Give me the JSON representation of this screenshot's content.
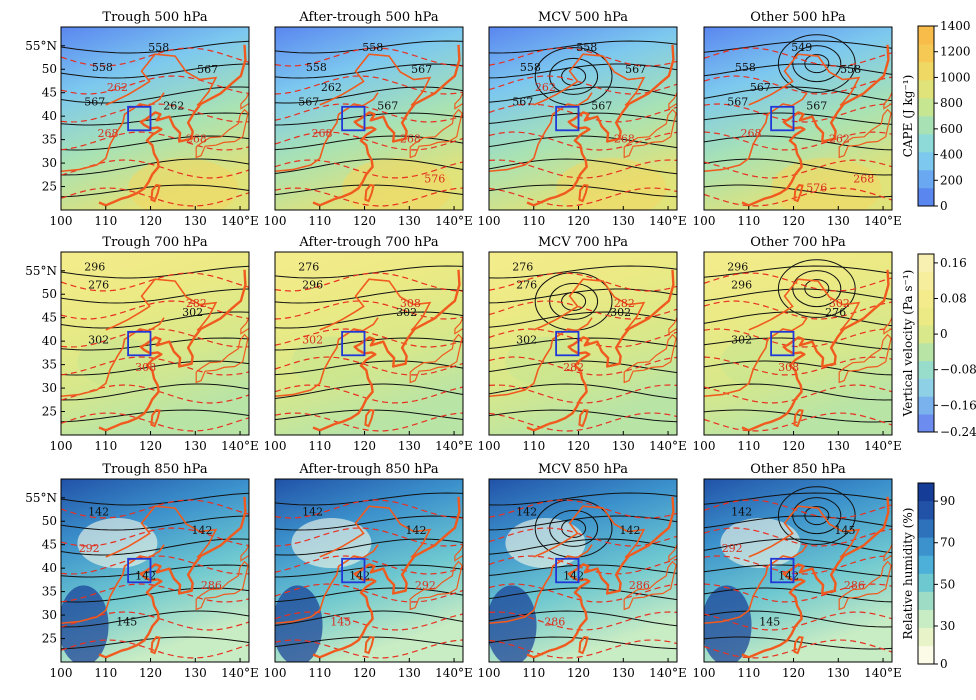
{
  "chart_data": {
    "type": "map",
    "panel_labels": [
      [
        "Trough  500  hPa",
        "After-trough  500  hPa",
        "MCV  500  hPa",
        "Other  500  hPa"
      ],
      [
        "Trough  700  hPa",
        "After-trough  700  hPa",
        "MCV  700  hPa",
        "Other  700  hPa"
      ],
      [
        "Trough  850  hPa",
        "After-trough  850  hPa",
        "MCV  850  hPa",
        "Other  850  hPa"
      ]
    ],
    "longitude": {
      "range": [
        100,
        142
      ],
      "ticks": [
        "100",
        "110",
        "120",
        "130",
        "140°E"
      ]
    },
    "latitude": {
      "range": [
        20,
        59
      ],
      "ticks": [
        "55°N",
        "50",
        "45",
        "40",
        "35",
        "30",
        "25"
      ]
    },
    "study_box": {
      "lon": [
        115,
        120
      ],
      "lat": [
        37,
        42
      ],
      "color": "#2038d8"
    },
    "colorbars": [
      {
        "label": "CAPE (J kg⁻¹)",
        "min": 0,
        "max": 1400,
        "ticks": [
          "1400",
          "1200",
          "1000",
          "800",
          "600",
          "400",
          "200",
          "0"
        ],
        "colors": [
          "#5a86f0",
          "#6aa8f2",
          "#7cc8ef",
          "#8edad8",
          "#a8e2b4",
          "#c6e692",
          "#e0e27a",
          "#f0d864",
          "#f6c854",
          "#f8bc4a"
        ]
      },
      {
        "label": "Vertical velocity (Pa s⁻¹)",
        "min": -0.24,
        "max": 0.16,
        "ticks": [
          "0.16",
          "0.08",
          "0",
          "−0.08",
          "−0.16",
          "−0.24"
        ],
        "colors": [
          "#6c8cf0",
          "#7ab2ee",
          "#8ed0e6",
          "#98dccc",
          "#b8e4a6",
          "#d8e88a",
          "#ecea84",
          "#f4ec8c",
          "#f6ee9c",
          "#f8f0b0"
        ]
      },
      {
        "label": "Relative humidity (%)",
        "min": 0,
        "max": 100,
        "ticks": [
          "90",
          "70",
          "50",
          "30",
          "0"
        ],
        "colors": [
          "#fbfbe8",
          "#e8f4c8",
          "#c8ecc4",
          "#9edcc6",
          "#6ec8d0",
          "#4cb0d8",
          "#3c92cc",
          "#2e72bc",
          "#2152a8",
          "#153c96"
        ]
      }
    ],
    "contour_labels": {
      "Trough  500  hPa": [
        "558",
        "558",
        "567",
        "567",
        "262",
        "262",
        "268",
        "268"
      ],
      "After-trough  500  hPa": [
        "558",
        "558",
        "567",
        "567",
        "567",
        "262",
        "268",
        "268",
        "576"
      ],
      "MCV  500  hPa": [
        "558",
        "558",
        "567",
        "567",
        "567",
        "262",
        "268"
      ],
      "Other  500  hPa": [
        "549",
        "558",
        "558",
        "567",
        "567",
        "567",
        "262",
        "268",
        "268",
        "576"
      ],
      "Trough  700  hPa": [
        "296",
        "276",
        "302",
        "302",
        "282",
        "308"
      ],
      "After-trough  700  hPa": [
        "276",
        "296",
        "302",
        "302",
        "308"
      ],
      "MCV  700  hPa": [
        "276",
        "276",
        "302",
        "302",
        "282",
        "282"
      ],
      "Other  700  hPa": [
        "296",
        "296",
        "276",
        "302",
        "302",
        "308"
      ],
      "Trough  850  hPa": [
        "142",
        "142",
        "142",
        "145",
        "286",
        "292"
      ],
      "After-trough  850  hPa": [
        "142",
        "142",
        "142",
        "145",
        "292"
      ],
      "MCV  850  hPa": [
        "142",
        "142",
        "142",
        "286",
        "286"
      ],
      "Other  850  hPa": [
        "142",
        "142",
        "145",
        "145",
        "286",
        "292"
      ]
    }
  }
}
